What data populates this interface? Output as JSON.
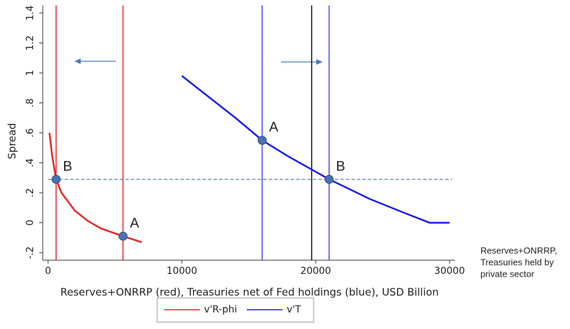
{
  "chart_data": {
    "type": "line",
    "x_label": "Reserves+ONRRP (red), Treasuries net of Fed holdings (blue), USD Billion",
    "y_label": "Spread",
    "xlim": [
      -400,
      30400
    ],
    "ylim": [
      -0.25,
      1.45
    ],
    "xticks": [
      0,
      10000,
      20000,
      30000
    ],
    "yticks": [
      {
        "value": -0.2,
        "label": "-.2"
      },
      0,
      {
        "value": 0.2,
        "label": ".2"
      },
      {
        "value": 0.4,
        "label": ".4"
      },
      {
        "value": 0.6,
        "label": ".6"
      },
      {
        "value": 0.8,
        "label": ".8"
      },
      1,
      1.2,
      1.4
    ],
    "series": [
      {
        "name": "v'R-phi",
        "color": "#ee2222",
        "x": [
          100,
          300,
          600,
          1000,
          2000,
          3000,
          4000,
          5600,
          7000
        ],
        "values": [
          0.6,
          0.45,
          0.29,
          0.2,
          0.08,
          0.01,
          -0.04,
          -0.09,
          -0.13
        ]
      },
      {
        "name": "v'T",
        "color": "#1a1aee",
        "x": [
          10000,
          12000,
          14000,
          16000,
          18000,
          20000,
          21000,
          24000,
          26500,
          28500,
          30000
        ],
        "values": [
          0.98,
          0.84,
          0.7,
          0.55,
          0.44,
          0.34,
          0.29,
          0.16,
          0.07,
          0,
          0
        ]
      }
    ],
    "vlines": [
      {
        "x": 600,
        "color": "#ee2222"
      },
      {
        "x": 5600,
        "color": "#ee2222"
      },
      {
        "x": 16000,
        "color": "#4444ee"
      },
      {
        "x": 21000,
        "color": "#4444ee"
      },
      {
        "x": 19700,
        "color": "#111111"
      }
    ],
    "hline": {
      "y": 0.29,
      "color": "#4a6fb0"
    },
    "points": [
      {
        "label": "B",
        "x": 600,
        "y": 0.29
      },
      {
        "label": "A",
        "x": 5600,
        "y": -0.09
      },
      {
        "label": "A",
        "x": 16000,
        "y": 0.55
      },
      {
        "label": "B",
        "x": 21000,
        "y": 0.29
      }
    ],
    "side_note": [
      "Reserves+ONRRP,",
      "Treasuries held by",
      "private sector"
    ]
  }
}
